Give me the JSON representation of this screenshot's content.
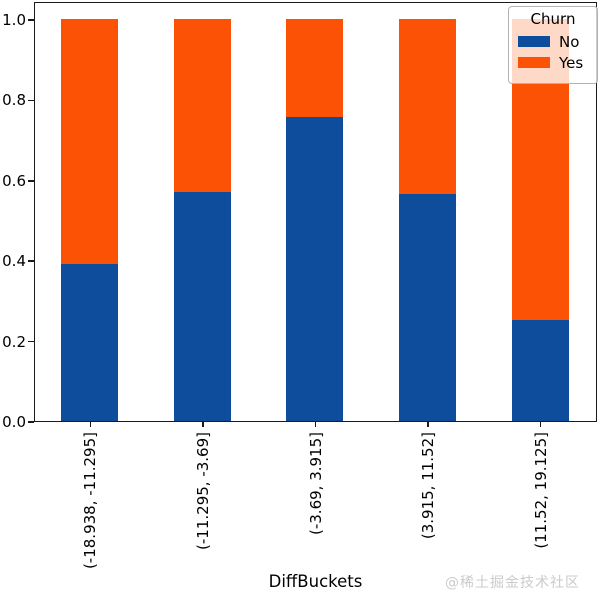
{
  "chart_data": {
    "type": "bar",
    "stacked": true,
    "normalized": true,
    "title": "",
    "xlabel": "DiffBuckets",
    "ylabel": "",
    "ylim": [
      0,
      1.05
    ],
    "yticks": [
      "0.0",
      "0.2",
      "0.4",
      "0.6",
      "0.8",
      "1.0"
    ],
    "categories": [
      "(-18.938, -11.295]",
      "(-11.295, -3.69]",
      "(-3.69, 3.915]",
      "(3.915, 11.52]",
      "(11.52, 19.125]"
    ],
    "series": [
      {
        "name": "No",
        "color": "#0d4d9c",
        "values": [
          0.39,
          0.57,
          0.755,
          0.565,
          0.25
        ]
      },
      {
        "name": "Yes",
        "color": "#fc5206",
        "values": [
          0.61,
          0.43,
          0.245,
          0.435,
          0.75
        ]
      }
    ],
    "legend": {
      "title": "Churn",
      "position": "upper-right",
      "entries": [
        "No",
        "Yes"
      ]
    },
    "grid": false
  },
  "watermark": "@稀土掘金技术社区"
}
